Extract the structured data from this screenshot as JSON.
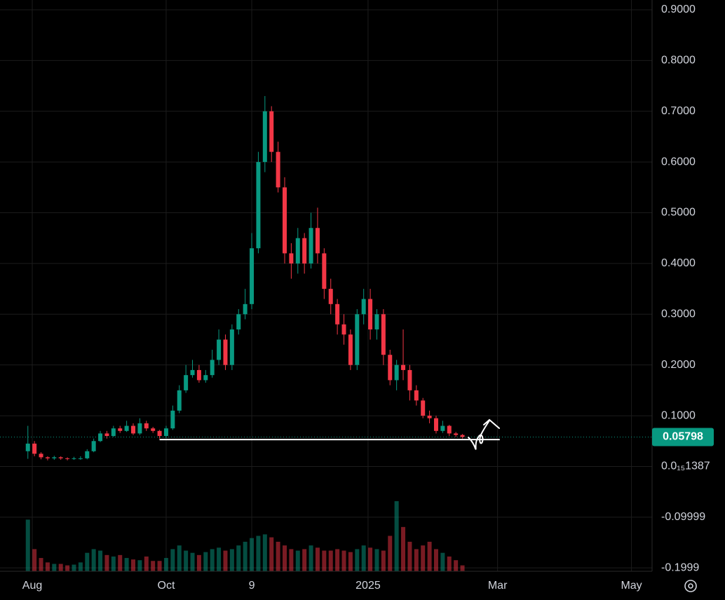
{
  "chart_data": {
    "type": "candlestick",
    "x": [
      -2,
      1,
      4,
      7,
      10,
      13,
      16,
      19,
      22,
      25,
      28,
      31,
      34,
      37,
      40,
      43,
      46,
      49,
      52,
      55,
      58,
      61,
      64,
      67,
      70,
      73,
      76,
      79,
      82,
      85,
      88,
      91,
      94,
      97,
      100,
      103,
      106,
      109,
      112,
      115,
      118,
      121,
      124,
      127,
      130,
      133,
      136,
      139,
      142,
      145,
      148,
      151,
      154,
      157,
      160,
      163,
      166,
      169,
      172,
      175,
      178,
      181,
      184,
      187,
      190,
      193,
      196
    ],
    "open": [
      0.03,
      0.045,
      0.025,
      0.018,
      0.016,
      0.018,
      0.016,
      0.015,
      0.016,
      0.016,
      0.03,
      0.05,
      0.065,
      0.06,
      0.075,
      0.07,
      0.08,
      0.065,
      0.085,
      0.075,
      0.07,
      0.06,
      0.075,
      0.11,
      0.15,
      0.18,
      0.19,
      0.17,
      0.18,
      0.21,
      0.25,
      0.2,
      0.27,
      0.3,
      0.32,
      0.43,
      0.6,
      0.7,
      0.62,
      0.55,
      0.42,
      0.4,
      0.45,
      0.4,
      0.47,
      0.42,
      0.35,
      0.32,
      0.28,
      0.26,
      0.2,
      0.3,
      0.33,
      0.27,
      0.3,
      0.22,
      0.17,
      0.2,
      0.19,
      0.15,
      0.13,
      0.1,
      0.095,
      0.07,
      0.08,
      0.065,
      0.062
    ],
    "high": [
      0.08,
      0.05,
      0.028,
      0.02,
      0.021,
      0.02,
      0.018,
      0.019,
      0.02,
      0.034,
      0.055,
      0.07,
      0.07,
      0.08,
      0.08,
      0.09,
      0.085,
      0.095,
      0.09,
      0.078,
      0.072,
      0.08,
      0.12,
      0.16,
      0.2,
      0.21,
      0.2,
      0.19,
      0.23,
      0.27,
      0.26,
      0.28,
      0.31,
      0.35,
      0.46,
      0.62,
      0.73,
      0.71,
      0.64,
      0.57,
      0.44,
      0.47,
      0.46,
      0.5,
      0.51,
      0.43,
      0.37,
      0.33,
      0.3,
      0.27,
      0.31,
      0.35,
      0.35,
      0.31,
      0.31,
      0.23,
      0.21,
      0.27,
      0.2,
      0.16,
      0.135,
      0.11,
      0.1,
      0.09,
      0.082,
      0.068,
      0.064
    ],
    "low": [
      0.015,
      0.02,
      0.014,
      0.012,
      0.013,
      0.013,
      0.012,
      0.013,
      0.013,
      0.014,
      0.028,
      0.048,
      0.055,
      0.058,
      0.066,
      0.068,
      0.062,
      0.062,
      0.07,
      0.066,
      0.055,
      0.056,
      0.072,
      0.105,
      0.145,
      0.175,
      0.165,
      0.165,
      0.175,
      0.2,
      0.19,
      0.19,
      0.26,
      0.29,
      0.31,
      0.42,
      0.58,
      0.6,
      0.54,
      0.4,
      0.37,
      0.38,
      0.38,
      0.39,
      0.4,
      0.33,
      0.3,
      0.26,
      0.24,
      0.19,
      0.19,
      0.28,
      0.25,
      0.25,
      0.2,
      0.16,
      0.15,
      0.17,
      0.13,
      0.12,
      0.095,
      0.085,
      0.065,
      0.066,
      0.06,
      0.058,
      0.055
    ],
    "close": [
      0.045,
      0.025,
      0.018,
      0.016,
      0.018,
      0.016,
      0.015,
      0.016,
      0.016,
      0.03,
      0.05,
      0.065,
      0.06,
      0.075,
      0.07,
      0.08,
      0.065,
      0.085,
      0.075,
      0.07,
      0.06,
      0.075,
      0.11,
      0.15,
      0.18,
      0.19,
      0.17,
      0.18,
      0.21,
      0.25,
      0.2,
      0.27,
      0.3,
      0.32,
      0.43,
      0.6,
      0.7,
      0.62,
      0.55,
      0.42,
      0.4,
      0.45,
      0.4,
      0.47,
      0.42,
      0.35,
      0.32,
      0.28,
      0.26,
      0.2,
      0.3,
      0.33,
      0.27,
      0.3,
      0.22,
      0.17,
      0.2,
      0.19,
      0.15,
      0.13,
      0.1,
      0.095,
      0.07,
      0.08,
      0.065,
      0.062,
      0.058
    ],
    "volume": [
      70,
      30,
      18,
      12,
      10,
      10,
      8,
      9,
      12,
      25,
      30,
      28,
      22,
      20,
      22,
      18,
      16,
      15,
      20,
      14,
      14,
      18,
      30,
      35,
      28,
      25,
      22,
      26,
      30,
      32,
      28,
      30,
      35,
      40,
      45,
      48,
      50,
      46,
      40,
      35,
      30,
      28,
      30,
      35,
      32,
      28,
      28,
      30,
      28,
      26,
      30,
      35,
      32,
      30,
      28,
      48,
      95,
      60,
      40,
      30,
      35,
      40,
      30,
      25,
      20,
      15,
      8
    ],
    "up_color": "#089981",
    "down_color": "#f23645",
    "xlim": [
      -14.7,
      282.4
    ],
    "xticks": [
      {
        "value": 0,
        "label": "Aug"
      },
      {
        "value": 61,
        "label": "Oct"
      },
      {
        "value": 100,
        "label": "9"
      },
      {
        "value": 153,
        "label": "2025"
      },
      {
        "value": 212,
        "label": "Mar"
      },
      {
        "value": 273,
        "label": "May"
      }
    ],
    "ylim": [
      -0.2066,
      0.9193
    ],
    "yticks": [
      {
        "value": 0.9,
        "label": "0.9000"
      },
      {
        "value": 0.8,
        "label": "0.8000"
      },
      {
        "value": 0.7,
        "label": "0.7000"
      },
      {
        "value": 0.6,
        "label": "0.6000"
      },
      {
        "value": 0.5,
        "label": "0.5000"
      },
      {
        "value": 0.4,
        "label": "0.4000"
      },
      {
        "value": 0.3,
        "label": "0.3000"
      },
      {
        "value": 0.2,
        "label": "0.2000"
      },
      {
        "value": 0.1,
        "label": "0.1000"
      },
      {
        "value": 1.387e-16,
        "label": "0.0₁₅1387"
      },
      {
        "value": -0.09999,
        "label": "-0.09999"
      },
      {
        "value": -0.1999,
        "label": "-0.1999"
      }
    ],
    "grid": true,
    "last_price": 0.05798,
    "support_line": {
      "value": 0.053,
      "x": [
        58,
        213
      ],
      "color": "#ffffff"
    }
  }
}
